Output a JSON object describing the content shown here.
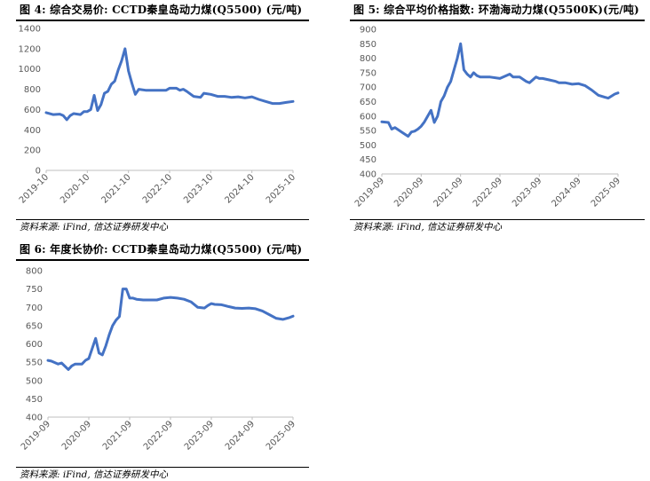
{
  "charts": [
    {
      "title": "图 4:  综合交易价: CCTD秦皇岛动力煤(Q5500)  (元/吨)",
      "source": "资料来源: iFind, 信达证券研发中心"
    },
    {
      "title": "图 5: 综合平均价格指数: 环渤海动力煤(Q5500K)(元/吨)",
      "source": "资料来源: iFind, 信达证券研发中心"
    },
    {
      "title": "图 6:  年度长协价: CCTD秦皇岛动力煤(Q5500)  (元/吨)",
      "source": "资料来源: iFind, 信达证券研发中心"
    }
  ],
  "chart_data": [
    {
      "type": "line",
      "title": "图 4:  综合交易价: CCTD秦皇岛动力煤(Q5500)  (元/吨)",
      "xlabel": "",
      "ylabel": "",
      "ylim": [
        0,
        1400
      ],
      "yticks": [
        0,
        200,
        400,
        600,
        800,
        1000,
        1200,
        1400
      ],
      "xlim": [
        "2019-10",
        "2025-10"
      ],
      "xticks": [
        "2019-10",
        "2020-10",
        "2021-10",
        "2022-10",
        "2023-10",
        "2024-10",
        "2025-10"
      ],
      "line_color": "#4472C4",
      "grid": false,
      "series": [
        {
          "x": [
            "2019-10",
            "2019-12",
            "2020-02",
            "2020-03",
            "2020-04",
            "2020-05",
            "2020-06",
            "2020-08",
            "2020-09",
            "2020-10",
            "2020-11",
            "2020-12",
            "2021-01",
            "2021-02",
            "2021-03",
            "2021-04",
            "2021-05",
            "2021-06",
            "2021-07",
            "2021-08",
            "2021-09",
            "2021-10",
            "2021-11",
            "2021-12",
            "2022-01",
            "2022-03",
            "2022-06",
            "2022-09",
            "2022-10",
            "2022-12",
            "2023-01",
            "2023-02",
            "2023-03",
            "2023-05",
            "2023-07",
            "2023-08",
            "2023-10",
            "2023-12",
            "2024-02",
            "2024-04",
            "2024-06",
            "2024-08",
            "2024-10",
            "2024-12",
            "2025-02",
            "2025-04",
            "2025-06",
            "2025-08",
            "2025-10"
          ],
          "values": [
            570,
            550,
            555,
            540,
            500,
            540,
            560,
            550,
            580,
            580,
            600,
            740,
            590,
            650,
            760,
            780,
            850,
            880,
            990,
            1080,
            1200,
            980,
            860,
            750,
            800,
            790,
            790,
            790,
            810,
            810,
            790,
            800,
            780,
            730,
            720,
            760,
            750,
            730,
            730,
            720,
            725,
            715,
            725,
            700,
            680,
            660,
            660,
            670,
            680
          ]
        }
      ]
    },
    {
      "type": "line",
      "title": "图 5: 综合平均价格指数: 环渤海动力煤(Q5500K)(元/吨)",
      "xlabel": "",
      "ylabel": "",
      "ylim": [
        400,
        900
      ],
      "yticks": [
        400,
        450,
        500,
        550,
        600,
        650,
        700,
        750,
        800,
        850,
        900
      ],
      "xlim": [
        "2019-09",
        "2025-09"
      ],
      "xticks": [
        "2019-09",
        "2020-09",
        "2021-09",
        "2022-09",
        "2023-09",
        "2024-09",
        "2025-09"
      ],
      "line_color": "#4472C4",
      "grid": false,
      "series": [
        {
          "x": [
            "2019-09",
            "2019-11",
            "2019-12",
            "2020-01",
            "2020-03",
            "2020-05",
            "2020-06",
            "2020-07",
            "2020-08",
            "2020-09",
            "2020-10",
            "2020-12",
            "2021-01",
            "2021-02",
            "2021-03",
            "2021-04",
            "2021-05",
            "2021-06",
            "2021-07",
            "2021-08",
            "2021-09",
            "2021-10",
            "2021-11",
            "2021-12",
            "2022-01",
            "2022-02",
            "2022-03",
            "2022-06",
            "2022-09",
            "2022-10",
            "2022-12",
            "2023-01",
            "2023-03",
            "2023-05",
            "2023-06",
            "2023-08",
            "2023-09",
            "2023-10",
            "2023-12",
            "2024-02",
            "2024-03",
            "2024-05",
            "2024-07",
            "2024-09",
            "2024-11",
            "2025-01",
            "2025-03",
            "2025-05",
            "2025-06",
            "2025-08",
            "2025-09"
          ],
          "values": [
            580,
            578,
            555,
            560,
            545,
            530,
            545,
            548,
            555,
            565,
            580,
            620,
            578,
            600,
            650,
            670,
            700,
            720,
            760,
            800,
            850,
            760,
            745,
            735,
            750,
            740,
            735,
            735,
            730,
            735,
            745,
            735,
            735,
            720,
            715,
            735,
            730,
            730,
            725,
            720,
            715,
            715,
            710,
            712,
            705,
            690,
            672,
            665,
            662,
            676,
            680
          ]
        }
      ]
    },
    {
      "type": "line",
      "title": "图 6:  年度长协价: CCTD秦皇岛动力煤(Q5500)  (元/吨)",
      "xlabel": "",
      "ylabel": "",
      "ylim": [
        400,
        800
      ],
      "yticks": [
        400,
        450,
        500,
        550,
        600,
        650,
        700,
        750,
        800
      ],
      "xlim": [
        "2019-09",
        "2025-09"
      ],
      "xticks": [
        "2019-09",
        "2020-09",
        "2021-09",
        "2022-09",
        "2023-09",
        "2024-09",
        "2025-09"
      ],
      "line_color": "#4472C4",
      "grid": false,
      "series": [
        {
          "x": [
            "2019-09",
            "2019-10",
            "2019-12",
            "2020-01",
            "2020-03",
            "2020-04",
            "2020-05",
            "2020-07",
            "2020-08",
            "2020-09",
            "2020-11",
            "2020-12",
            "2021-01",
            "2021-02",
            "2021-03",
            "2021-04",
            "2021-05",
            "2021-06",
            "2021-07",
            "2021-08",
            "2021-09",
            "2021-10",
            "2021-11",
            "2022-01",
            "2022-03",
            "2022-05",
            "2022-07",
            "2022-09",
            "2022-11",
            "2023-01",
            "2023-03",
            "2023-05",
            "2023-07",
            "2023-08",
            "2023-09",
            "2023-10",
            "2023-12",
            "2024-02",
            "2024-04",
            "2024-06",
            "2024-08",
            "2024-10",
            "2024-12",
            "2025-02",
            "2025-04",
            "2025-06",
            "2025-08",
            "2025-09"
          ],
          "values": [
            555,
            553,
            545,
            548,
            530,
            540,
            545,
            545,
            555,
            560,
            615,
            575,
            570,
            595,
            625,
            650,
            665,
            675,
            750,
            750,
            725,
            725,
            722,
            720,
            720,
            720,
            725,
            727,
            725,
            722,
            715,
            700,
            698,
            705,
            710,
            708,
            707,
            702,
            698,
            697,
            698,
            696,
            690,
            680,
            670,
            667,
            672,
            676
          ]
        }
      ]
    }
  ]
}
